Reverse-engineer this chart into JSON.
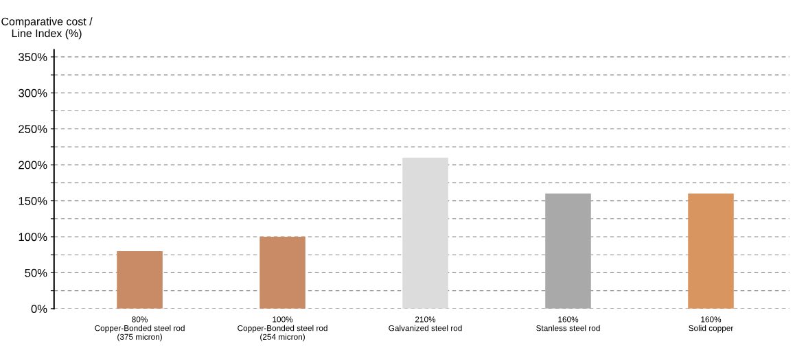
{
  "chart_data": {
    "type": "bar",
    "ylabel": "Comparative cost /\nLine Index (%)",
    "categories": [
      "Copper-Bonded steel rod\n(375 micron)",
      "Copper-Bonded steel rod\n(254 micron)",
      "Galvanized steel rod",
      "Stanless steel rod",
      "Solid copper"
    ],
    "values": [
      80,
      100,
      210,
      160,
      160
    ],
    "value_labels": [
      "80%",
      "100%",
      "210%",
      "160%",
      "160%"
    ],
    "colors": [
      "#c98a66",
      "#c98a66",
      "#dcdcdc",
      "#a9a9a9",
      "#d9955f"
    ],
    "ylim": [
      0,
      360
    ],
    "yticks": [
      {
        "value": 0,
        "label": "0%"
      },
      {
        "value": 25,
        "label": null
      },
      {
        "value": 50,
        "label": "50%"
      },
      {
        "value": 75,
        "label": null
      },
      {
        "value": 100,
        "label": "100%"
      },
      {
        "value": 125,
        "label": null
      },
      {
        "value": 150,
        "label": "150%"
      },
      {
        "value": 175,
        "label": null
      },
      {
        "value": 200,
        "label": "200%"
      },
      {
        "value": 225,
        "label": null
      },
      {
        "value": 250,
        "label": "250%"
      },
      {
        "value": 275,
        "label": null
      },
      {
        "value": 300,
        "label": "300%"
      },
      {
        "value": 325,
        "label": null
      },
      {
        "value": 350,
        "label": "350%"
      }
    ],
    "grid": "y"
  }
}
